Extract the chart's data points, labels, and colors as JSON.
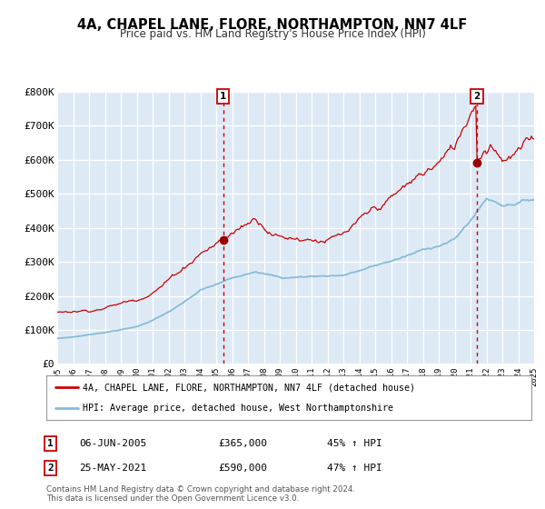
{
  "title": "4A, CHAPEL LANE, FLORE, NORTHAMPTON, NN7 4LF",
  "subtitle": "Price paid vs. HM Land Registry's House Price Index (HPI)",
  "plot_bg_color": "#ddeaf5",
  "grid_color": "#c8d8e8",
  "red_line_color": "#cc0000",
  "blue_line_color": "#88bbd8",
  "x_start_year": 1995,
  "x_end_year": 2025,
  "y_min": 0,
  "y_max": 800000,
  "y_ticks": [
    0,
    100000,
    200000,
    300000,
    400000,
    500000,
    600000,
    700000,
    800000
  ],
  "y_tick_labels": [
    "£0",
    "£100K",
    "£200K",
    "£300K",
    "£400K",
    "£500K",
    "£600K",
    "£700K",
    "£800K"
  ],
  "sale1_year": 2005.43,
  "sale1_price": 365000,
  "sale2_year": 2021.4,
  "sale2_price": 590000,
  "legend_line1": "4A, CHAPEL LANE, FLORE, NORTHAMPTON, NN7 4LF (detached house)",
  "legend_line2": "HPI: Average price, detached house, West Northamptonshire",
  "note1_num": "1",
  "note1_date": "06-JUN-2005",
  "note1_price": "£365,000",
  "note1_pct": "45% ↑ HPI",
  "note2_num": "2",
  "note2_date": "25-MAY-2021",
  "note2_price": "£590,000",
  "note2_pct": "47% ↑ HPI",
  "footer": "Contains HM Land Registry data © Crown copyright and database right 2024.\nThis data is licensed under the Open Government Licence v3.0."
}
